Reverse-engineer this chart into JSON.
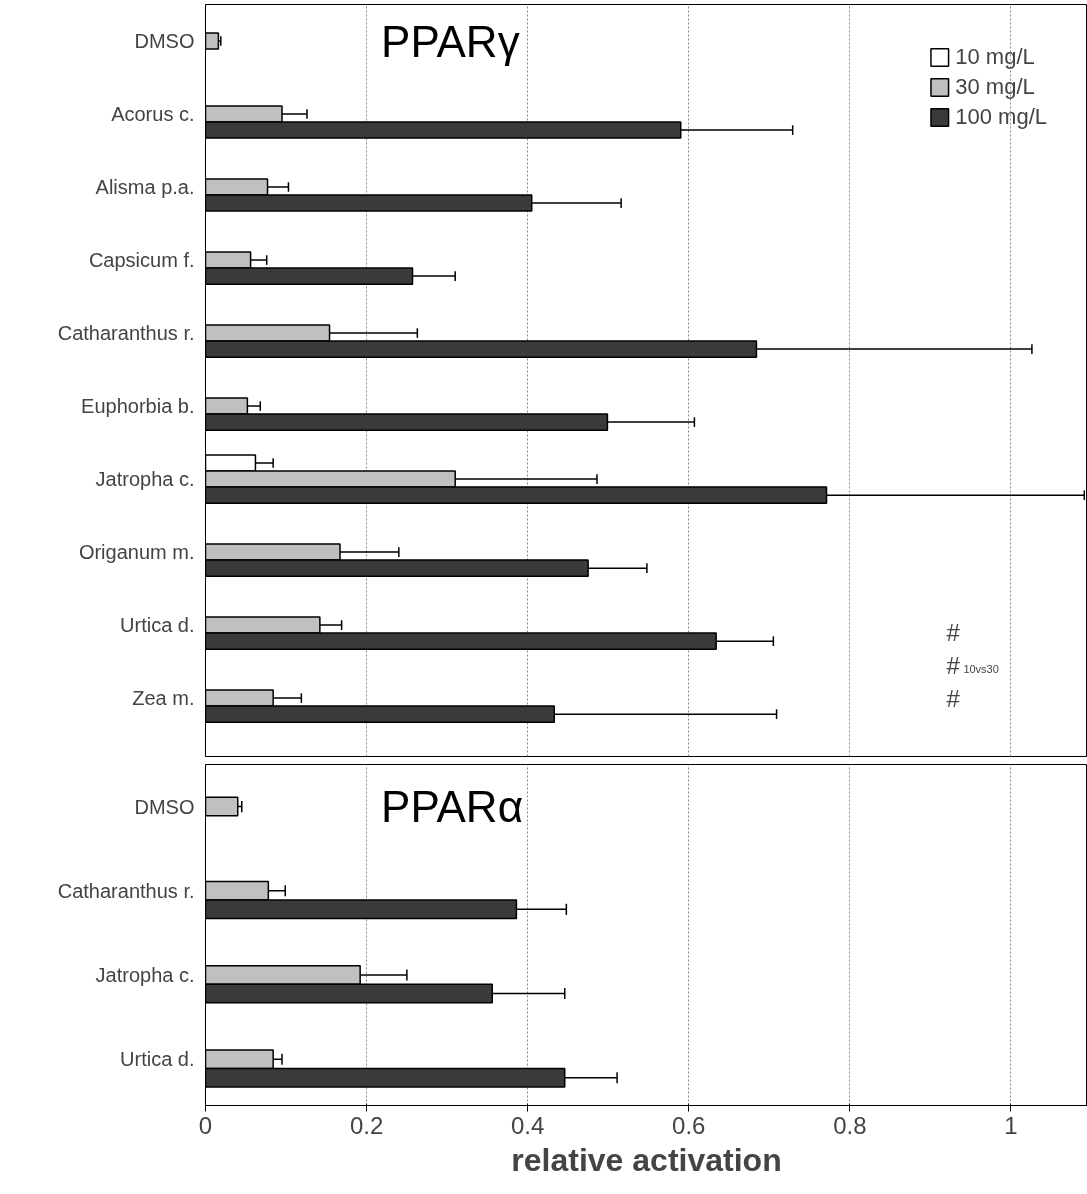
{
  "chart_data": [
    {
      "type": "bar",
      "title": "PPARγ",
      "orientation": "horizontal",
      "legend": "top right",
      "grid": "x",
      "tick_labels": "y",
      "categories": [
        "DMSO",
        "Acorus c.",
        "Alisma p.a.",
        "Capsicum f.",
        "Catharanthus r.",
        "Euphorbia b.",
        "Jatropha c.",
        "Origanum m.",
        "Urtica d.",
        "Zea m."
      ],
      "xlim": [
        0,
        1.095
      ],
      "xticks": [
        0,
        0.2,
        0.4,
        0.6,
        0.8,
        1
      ],
      "series": [
        {
          "name": "10 mg/L",
          "color": "#ffffff",
          "values": [
            null,
            null,
            null,
            null,
            null,
            null,
            0.062,
            null,
            null,
            null
          ],
          "errors": [
            null,
            null,
            null,
            null,
            null,
            null,
            0.022,
            null,
            null,
            null
          ]
        },
        {
          "name": "30 mg/L",
          "color": "#c0c0c0",
          "values": [
            0.016,
            0.095,
            0.077,
            0.056,
            0.154,
            0.052,
            0.31,
            0.167,
            0.142,
            0.084
          ],
          "errors": [
            0.003,
            0.031,
            0.026,
            0.02,
            0.109,
            0.016,
            0.176,
            0.073,
            0.027,
            0.035
          ]
        },
        {
          "name": "100 mg/L",
          "color": "#3a3a3a",
          "values": [
            null,
            0.59,
            0.405,
            0.257,
            0.684,
            0.499,
            0.771,
            0.475,
            0.634,
            0.433
          ],
          "errors": [
            null,
            0.139,
            0.111,
            0.053,
            0.342,
            0.108,
            0.32,
            0.073,
            0.071,
            0.276
          ]
        }
      ],
      "annotations": [
        "#",
        "#$_{10vs30}$",
        "#"
      ]
    },
    {
      "type": "bar",
      "title": "PPARα",
      "orientation": "horizontal",
      "grid": "x",
      "xlabel": "relative activation",
      "categories": [
        "DMSO",
        "Catharanthus r.",
        "Jatropha c.",
        "Urtica d."
      ],
      "xlim": [
        0,
        1.095
      ],
      "xticks": [
        0,
        0.2,
        0.4,
        0.6,
        0.8,
        1
      ],
      "series": [
        {
          "color": "#c0c0c0",
          "values": [
            0.04,
            0.078,
            0.192,
            0.084
          ],
          "errors": [
            0.005,
            0.021,
            0.058,
            0.011
          ]
        },
        {
          "color": "#3a3a3a",
          "values": [
            null,
            0.386,
            0.356,
            0.446
          ],
          "errors": [
            null,
            0.062,
            0.09,
            0.065
          ]
        }
      ]
    }
  ]
}
